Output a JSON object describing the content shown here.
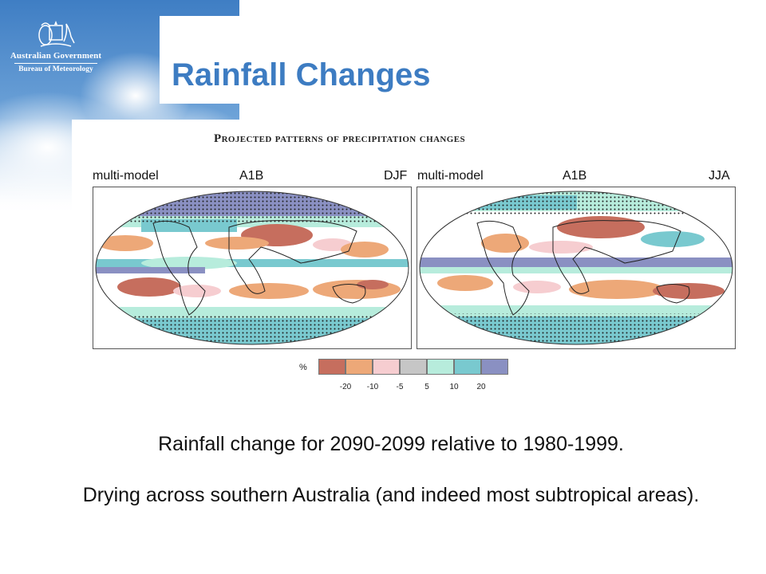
{
  "header": {
    "org_line1": "Australian Government",
    "org_line2": "Bureau of Meteorology",
    "crest_icon": "coat-of-arms-icon"
  },
  "slide": {
    "title": "Rainfall Changes"
  },
  "figure": {
    "title": "Projected patterns of precipitation changes",
    "panels": [
      {
        "left": "multi-model",
        "center": "A1B",
        "right": "DJF"
      },
      {
        "left": "multi-model",
        "center": "A1B",
        "right": "JJA"
      }
    ],
    "legend": {
      "unit": "%",
      "colors": [
        "#c66e5e",
        "#eda878",
        "#f6cdd0",
        "#c6c6c6",
        "#b7ecdc",
        "#79c9cf",
        "#8a90c2"
      ],
      "ticks": [
        "-20",
        "-10",
        "-5",
        "5",
        "10",
        "20"
      ]
    }
  },
  "captions": [
    "Rainfall change for 2090-2099 relative to 1980-1999.",
    "Drying across southern Australia (and indeed most subtropical areas)."
  ]
}
